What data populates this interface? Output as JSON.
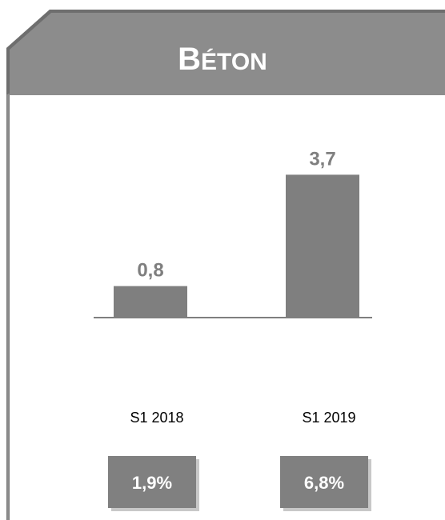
{
  "chart_data": {
    "type": "bar",
    "title": "BÉTON",
    "categories": [
      "S1 2018",
      "S1 2019"
    ],
    "values": [
      0.8,
      3.7
    ],
    "value_labels": [
      "0,8",
      "3,7"
    ],
    "color": "#7f7f7f",
    "badges": [
      "1,9%",
      "6,8%"
    ]
  }
}
